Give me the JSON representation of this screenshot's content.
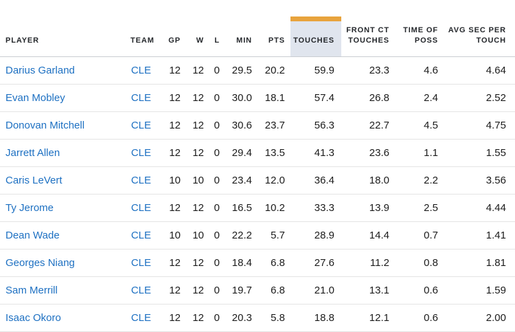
{
  "colors": {
    "link_blue": "#1d70c2",
    "header_text": "#24272b",
    "body_text": "#1b1b1b",
    "sorted_column_bg": "#e0e5ee",
    "sort_indicator_gold": "#e8a33d",
    "header_border": "#c9cdd2",
    "row_border": "#e4e4e4",
    "page_background": "#ffffff"
  },
  "table": {
    "sorted_column": "touches",
    "columns": [
      {
        "key": "player",
        "lines": [
          "PLAYER"
        ],
        "align": "left",
        "sorted": false,
        "is_link_column": true
      },
      {
        "key": "team",
        "lines": [
          "TEAM"
        ],
        "align": "right",
        "sorted": false,
        "is_link_column": true
      },
      {
        "key": "gp",
        "lines": [
          "GP"
        ],
        "align": "right",
        "sorted": false,
        "is_link_column": false
      },
      {
        "key": "w",
        "lines": [
          "W"
        ],
        "align": "right",
        "sorted": false,
        "is_link_column": false
      },
      {
        "key": "l",
        "lines": [
          "L"
        ],
        "align": "right",
        "sorted": false,
        "is_link_column": false
      },
      {
        "key": "min",
        "lines": [
          "MIN"
        ],
        "align": "right",
        "sorted": false,
        "is_link_column": false
      },
      {
        "key": "pts",
        "lines": [
          "PTS"
        ],
        "align": "right",
        "sorted": false,
        "is_link_column": false
      },
      {
        "key": "touches",
        "lines": [
          "TOUCHES"
        ],
        "align": "right",
        "sorted": true,
        "is_link_column": false
      },
      {
        "key": "front_ct_touches",
        "lines": [
          "FRONT CT",
          "TOUCHES"
        ],
        "align": "right",
        "sorted": false,
        "is_link_column": false
      },
      {
        "key": "time_of_poss",
        "lines": [
          "TIME OF",
          "POSS"
        ],
        "align": "right",
        "sorted": false,
        "is_link_column": false
      },
      {
        "key": "avg_sec_per_touch",
        "lines": [
          "AVG SEC PER",
          "TOUCH"
        ],
        "align": "right",
        "sorted": false,
        "is_link_column": false
      }
    ],
    "rows": [
      {
        "player": "Darius Garland",
        "team": "CLE",
        "gp": "12",
        "w": "12",
        "l": "0",
        "min": "29.5",
        "pts": "20.2",
        "touches": "59.9",
        "front_ct_touches": "23.3",
        "time_of_poss": "4.6",
        "avg_sec_per_touch": "4.64"
      },
      {
        "player": "Evan Mobley",
        "team": "CLE",
        "gp": "12",
        "w": "12",
        "l": "0",
        "min": "30.0",
        "pts": "18.1",
        "touches": "57.4",
        "front_ct_touches": "26.8",
        "time_of_poss": "2.4",
        "avg_sec_per_touch": "2.52"
      },
      {
        "player": "Donovan Mitchell",
        "team": "CLE",
        "gp": "12",
        "w": "12",
        "l": "0",
        "min": "30.6",
        "pts": "23.7",
        "touches": "56.3",
        "front_ct_touches": "22.7",
        "time_of_poss": "4.5",
        "avg_sec_per_touch": "4.75"
      },
      {
        "player": "Jarrett Allen",
        "team": "CLE",
        "gp": "12",
        "w": "12",
        "l": "0",
        "min": "29.4",
        "pts": "13.5",
        "touches": "41.3",
        "front_ct_touches": "23.6",
        "time_of_poss": "1.1",
        "avg_sec_per_touch": "1.55"
      },
      {
        "player": "Caris LeVert",
        "team": "CLE",
        "gp": "10",
        "w": "10",
        "l": "0",
        "min": "23.4",
        "pts": "12.0",
        "touches": "36.4",
        "front_ct_touches": "18.0",
        "time_of_poss": "2.2",
        "avg_sec_per_touch": "3.56"
      },
      {
        "player": "Ty Jerome",
        "team": "CLE",
        "gp": "12",
        "w": "12",
        "l": "0",
        "min": "16.5",
        "pts": "10.2",
        "touches": "33.3",
        "front_ct_touches": "13.9",
        "time_of_poss": "2.5",
        "avg_sec_per_touch": "4.44"
      },
      {
        "player": "Dean Wade",
        "team": "CLE",
        "gp": "10",
        "w": "10",
        "l": "0",
        "min": "22.2",
        "pts": "5.7",
        "touches": "28.9",
        "front_ct_touches": "14.4",
        "time_of_poss": "0.7",
        "avg_sec_per_touch": "1.41"
      },
      {
        "player": "Georges Niang",
        "team": "CLE",
        "gp": "12",
        "w": "12",
        "l": "0",
        "min": "18.4",
        "pts": "6.8",
        "touches": "27.6",
        "front_ct_touches": "11.2",
        "time_of_poss": "0.8",
        "avg_sec_per_touch": "1.81"
      },
      {
        "player": "Sam Merrill",
        "team": "CLE",
        "gp": "12",
        "w": "12",
        "l": "0",
        "min": "19.7",
        "pts": "6.8",
        "touches": "21.0",
        "front_ct_touches": "13.1",
        "time_of_poss": "0.6",
        "avg_sec_per_touch": "1.59"
      },
      {
        "player": "Isaac Okoro",
        "team": "CLE",
        "gp": "12",
        "w": "12",
        "l": "0",
        "min": "20.3",
        "pts": "5.8",
        "touches": "18.8",
        "front_ct_touches": "12.1",
        "time_of_poss": "0.6",
        "avg_sec_per_touch": "2.00"
      }
    ]
  }
}
